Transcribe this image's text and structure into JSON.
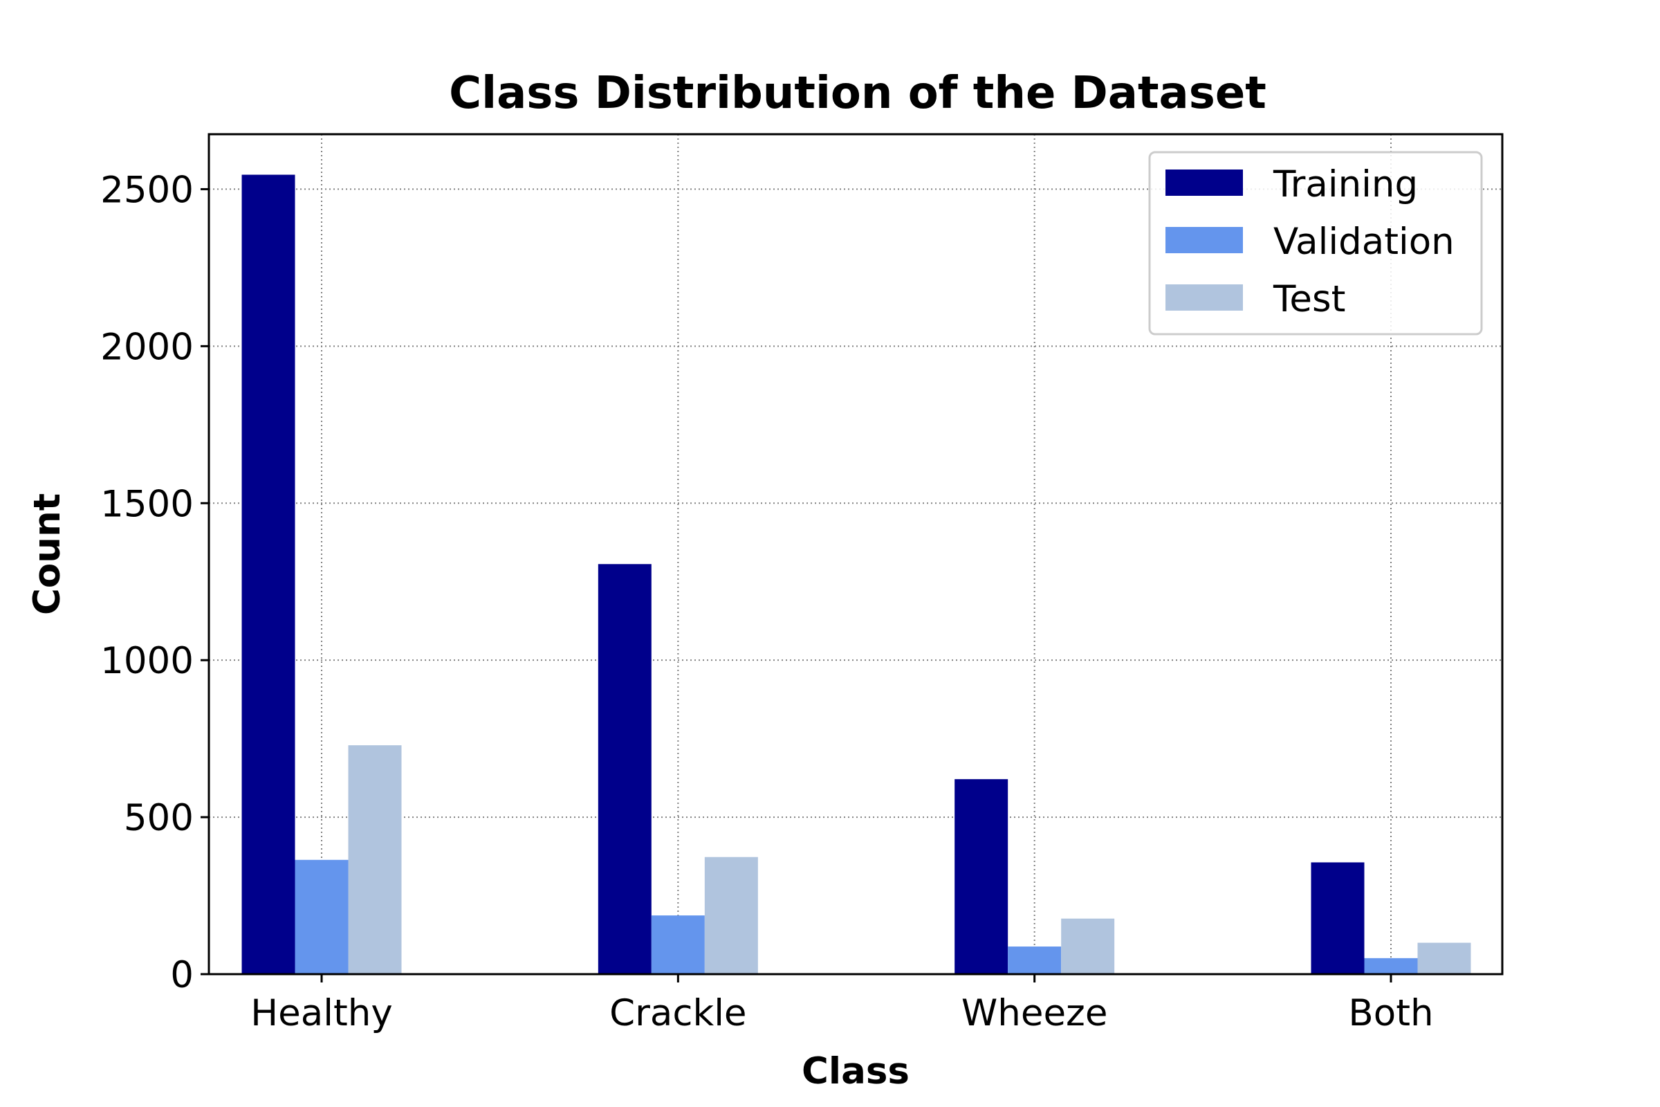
{
  "chart_data": {
    "type": "bar",
    "title": "Class Distribution of the Dataset",
    "xlabel": "Class",
    "ylabel": "Count",
    "categories": [
      "Healthy",
      "Crackle",
      "Wheeze",
      "Both"
    ],
    "series": [
      {
        "name": "Training",
        "color": "#00008B",
        "values": [
          2546,
          1306,
          621,
          356
        ]
      },
      {
        "name": "Validation",
        "color": "#6495ED",
        "values": [
          364,
          187,
          88,
          51
        ]
      },
      {
        "name": "Test",
        "color": "#B0C4DE",
        "values": [
          729,
          373,
          177,
          100
        ]
      }
    ],
    "ylim": [
      0,
      2675
    ],
    "yticks": [
      0,
      500,
      1000,
      1500,
      2000,
      2500
    ],
    "grid": true,
    "legend_position": "top-right"
  }
}
